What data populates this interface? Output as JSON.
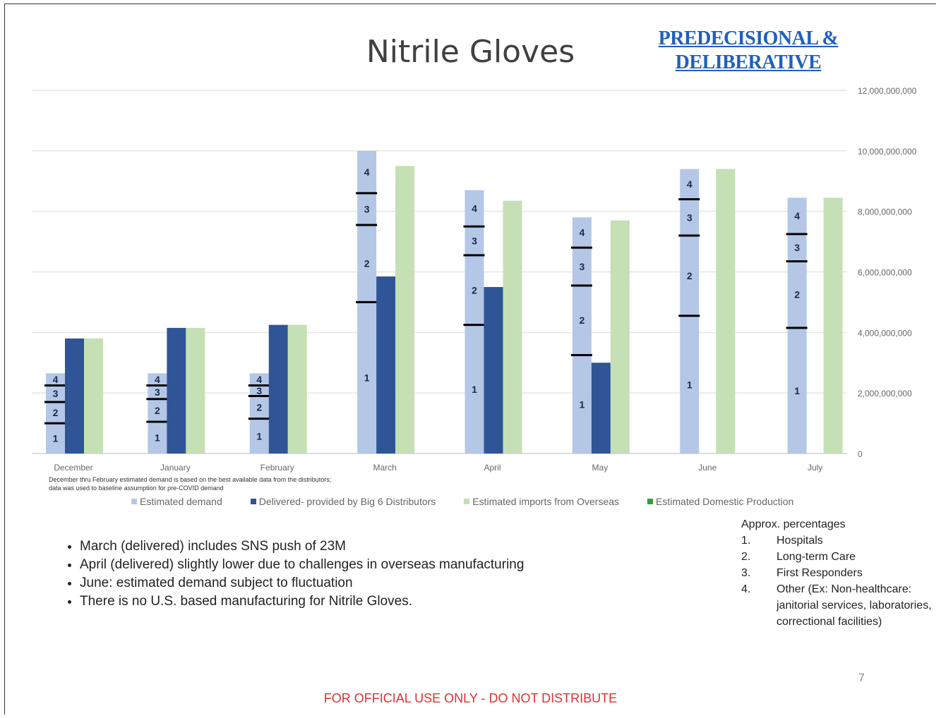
{
  "title": "Nitrile Gloves",
  "stamp": {
    "line1": "PREDECISIONAL &",
    "line2": "DELIBERATIVE"
  },
  "footnote": "December thru February estimated demand is based on the best available data from the distributors; data was used to baseline assumption for pre-COVID demand",
  "legend": [
    {
      "label": "Estimated demand",
      "color": "#b4c7e7"
    },
    {
      "label": "Delivered- provided by Big 6 Distributors",
      "color": "#2f5597"
    },
    {
      "label": "Estimated imports from Overseas",
      "color": "#c5e0b4"
    },
    {
      "label": "Estimated Domestic Production",
      "color": "#3a9b35"
    }
  ],
  "bullets": [
    "March (delivered) includes SNS push of 23M",
    "April (delivered) slightly lower due to challenges in overseas manufacturing",
    "June: estimated demand subject to fluctuation",
    "There is no U.S. based manufacturing for Nitrile Gloves."
  ],
  "percentages": {
    "title": "Approx. percentages",
    "items": [
      {
        "num": "1.",
        "label": "Hospitals"
      },
      {
        "num": "2.",
        "label": "Long-term Care"
      },
      {
        "num": "3.",
        "label": "First Responders"
      },
      {
        "num": "4.",
        "label": "Other (Ex: Non-healthcare: janitorial services, laboratories, correctional facilities)"
      }
    ]
  },
  "page_number": "7",
  "official_notice": "FOR OFFICIAL USE ONLY - DO NOT DISTRIBUTE",
  "chart_data": {
    "type": "bar",
    "categories": [
      "December",
      "January",
      "February",
      "March",
      "April",
      "May",
      "June",
      "July"
    ],
    "ylim": [
      0,
      12000000000
    ],
    "yticks": [
      {
        "value": 0,
        "label": "0"
      },
      {
        "value": 2000000000,
        "label": "2,000,000,000"
      },
      {
        "value": 4000000000,
        "label": "4,000,000,000"
      },
      {
        "value": 6000000000,
        "label": "6,000,000,000"
      },
      {
        "value": 8000000000,
        "label": "8,000,000,000"
      },
      {
        "value": 10000000000,
        "label": "10,000,000,000"
      },
      {
        "value": 12000000000,
        "label": "12,000,000,000"
      }
    ],
    "grid": true,
    "series": [
      {
        "name": "Estimated demand",
        "color": "#b4c7e7",
        "values": [
          2650000000,
          2650000000,
          2650000000,
          10000000000,
          8700000000,
          7800000000,
          9400000000,
          8450000000
        ],
        "segment_boundaries": [
          [
            1000000000,
            1700000000,
            2250000000
          ],
          [
            1050000000,
            1800000000,
            2250000000
          ],
          [
            1150000000,
            1900000000,
            2250000000
          ],
          [
            5000000000,
            7550000000,
            8600000000
          ],
          [
            4250000000,
            6550000000,
            7500000000
          ],
          [
            3250000000,
            5550000000,
            6800000000
          ],
          [
            4550000000,
            7200000000,
            8400000000
          ],
          [
            4150000000,
            6350000000,
            7250000000
          ]
        ],
        "segment_labels": [
          "1",
          "2",
          "3",
          "4"
        ]
      },
      {
        "name": "Delivered- provided by Big 6 Distributors",
        "color": "#2f5597",
        "values": [
          3800000000,
          4150000000,
          4250000000,
          5850000000,
          5500000000,
          3000000000,
          null,
          null
        ]
      },
      {
        "name": "Estimated imports from Overseas",
        "color": "#c5e0b4",
        "values": [
          3800000000,
          4150000000,
          4250000000,
          9500000000,
          8350000000,
          7700000000,
          9400000000,
          8450000000
        ]
      },
      {
        "name": "Estimated Domestic Production",
        "color": "#3a9b35",
        "values": [
          0,
          0,
          0,
          0,
          0,
          0,
          0,
          0
        ]
      }
    ]
  }
}
